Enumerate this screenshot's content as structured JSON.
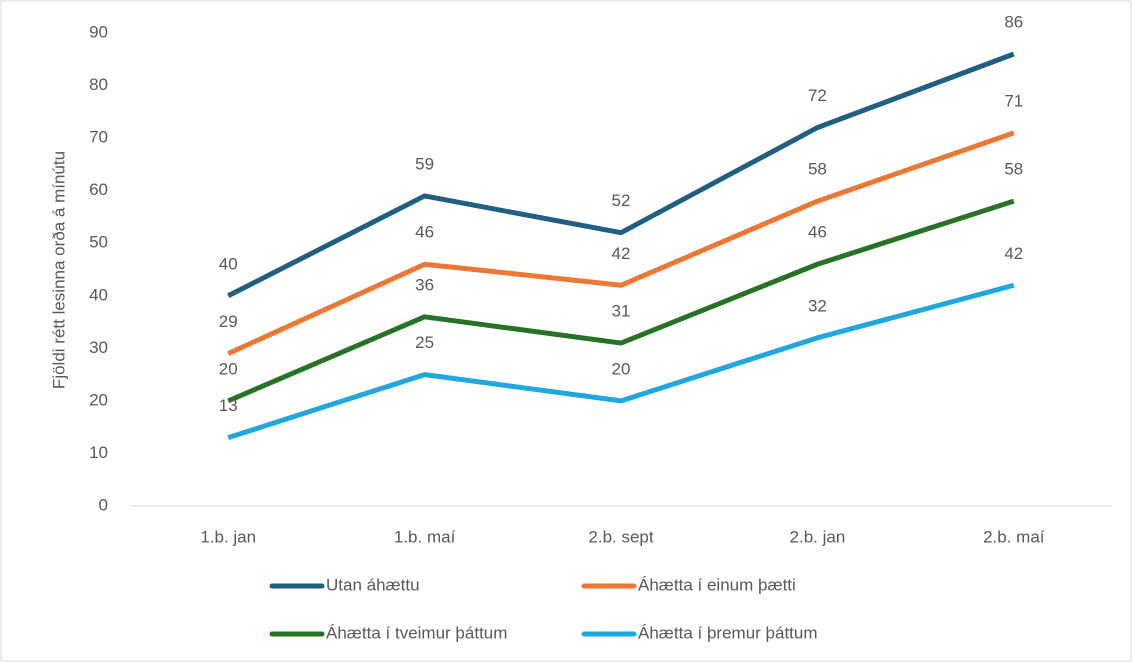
{
  "chart_data": {
    "type": "line",
    "y_label": "Fjöldi rétt lesinna orða á mínútu",
    "categories": [
      "1.b. jan",
      "1.b. maí",
      "2.b. sept",
      "2.b. jan",
      "2.b. maí"
    ],
    "series": [
      {
        "name": "Utan áhættu",
        "color": "#1f5f82",
        "values": [
          40,
          59,
          52,
          72,
          86
        ]
      },
      {
        "name": "Áhætta í einum þætti",
        "color": "#ee7733",
        "values": [
          29,
          46,
          42,
          58,
          71
        ]
      },
      {
        "name": "Áhætta í tveimur þáttum",
        "color": "#267326",
        "values": [
          20,
          36,
          31,
          46,
          58
        ]
      },
      {
        "name": "Áhætta í þremur þáttum",
        "color": "#1ea8df",
        "values": [
          13,
          25,
          20,
          32,
          42
        ]
      }
    ],
    "ylim": [
      0,
      90
    ],
    "yticks": [
      0,
      10,
      20,
      30,
      40,
      50,
      60,
      70,
      80,
      90
    ],
    "grid": false,
    "data_labels": true,
    "legend": "bottom"
  }
}
